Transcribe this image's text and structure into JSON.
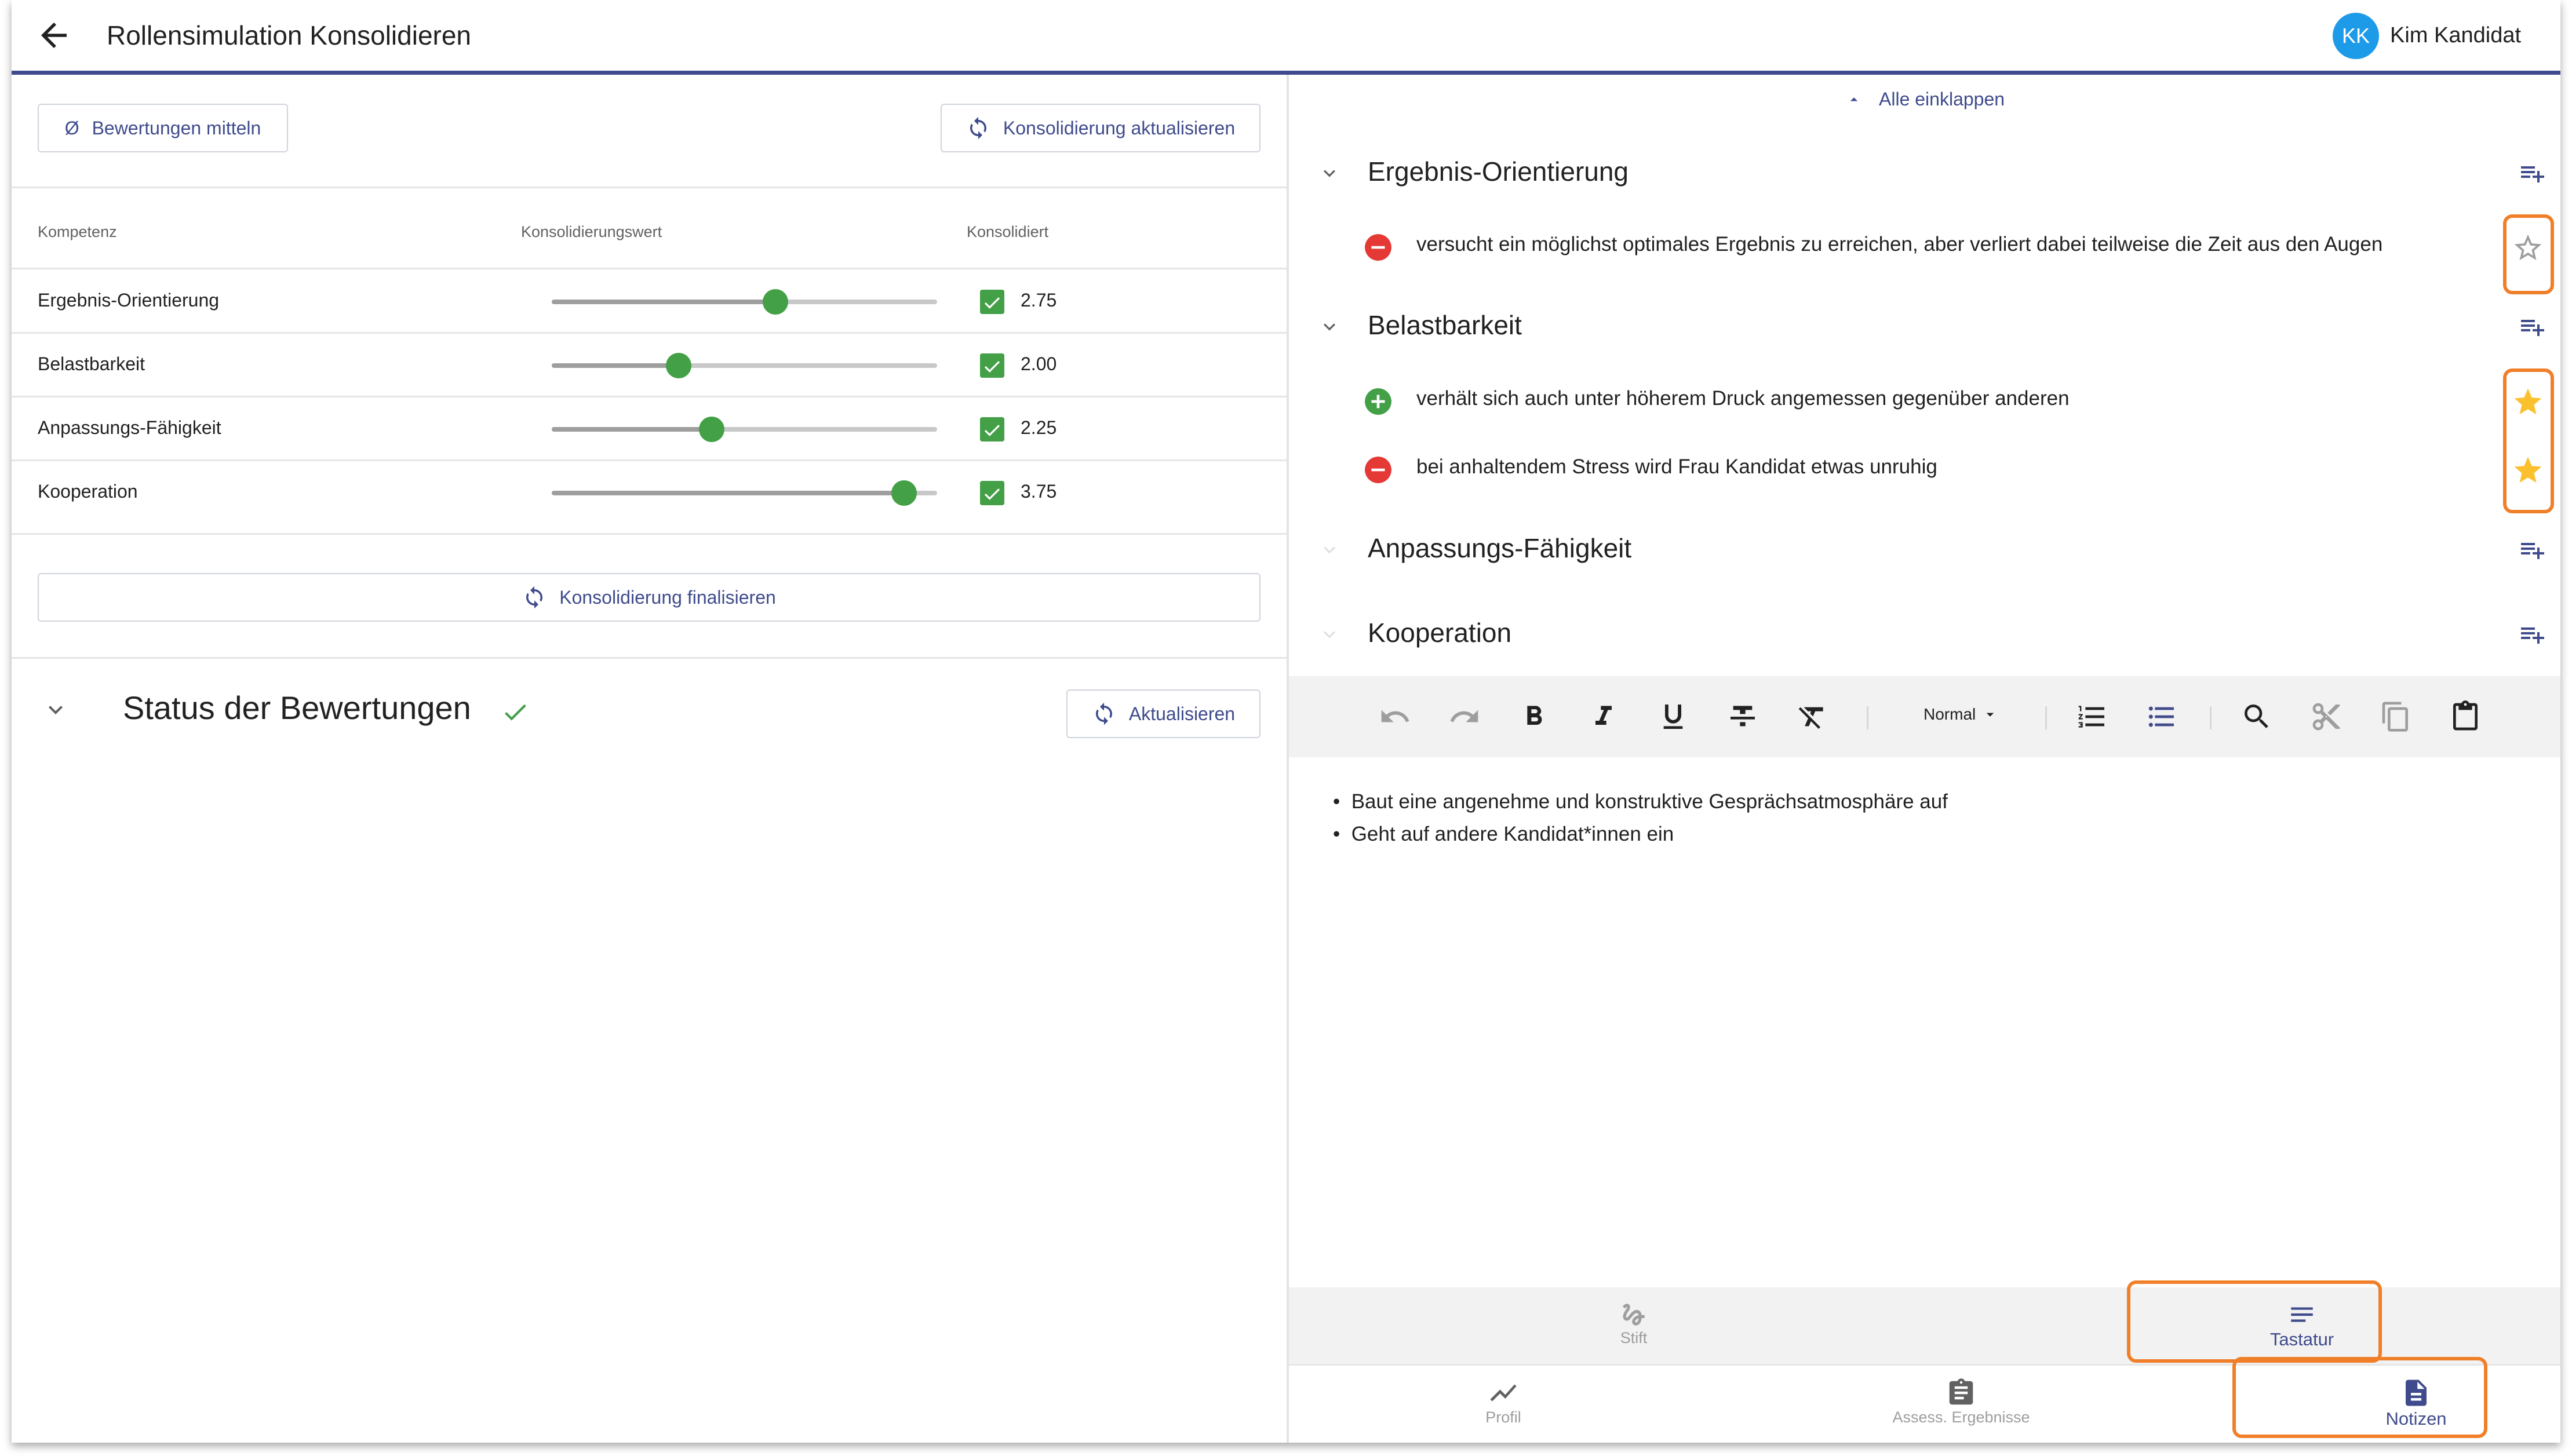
{
  "header": {
    "title": "Rollensimulation Konsolidieren",
    "user_initials": "KK",
    "user_name": "Kim Kandidat"
  },
  "consolidation": {
    "average_button": "Bewertungen mitteln",
    "average_symbol": "Ø",
    "update_button": "Konsolidierung aktualisieren",
    "finalize_button": "Konsolidierung finalisieren",
    "columns": [
      "Kompetenz",
      "Konsolidierungswert",
      "Konsolidiert"
    ],
    "rows": [
      {
        "label": "Ergebnis-Orientierung",
        "value": "2.75",
        "fraction": 0.58,
        "checked": true
      },
      {
        "label": "Belastbarkeit",
        "value": "2.00",
        "fraction": 0.33,
        "checked": true
      },
      {
        "label": "Anpassungs-Fähigkeit",
        "value": "2.25",
        "fraction": 0.415,
        "checked": true
      },
      {
        "label": "Kooperation",
        "value": "3.75",
        "fraction": 0.915,
        "checked": true
      }
    ]
  },
  "status": {
    "title": "Status der Bewertungen",
    "refresh_button": "Aktualisieren"
  },
  "notes": {
    "collapse_all": "Alle einklappen",
    "sections": [
      {
        "title": "Ergebnis-Orientierung",
        "items": [
          {
            "type": "negative",
            "text": "versucht ein möglichst optimales Ergebnis zu erreichen, aber verliert dabei teilweise die Zeit aus den Augen",
            "starred": false
          }
        ]
      },
      {
        "title": "Belastbarkeit",
        "items": [
          {
            "type": "positive",
            "text": "verhält sich auch unter höherem Druck angemessen gegenüber anderen",
            "starred": true
          },
          {
            "type": "negative",
            "text": "bei anhaltendem Stress wird Frau Kandidat etwas unruhig",
            "starred": true
          }
        ]
      },
      {
        "title": "Anpassungs-Fähigkeit",
        "items": []
      },
      {
        "title": "Kooperation",
        "items": []
      }
    ]
  },
  "editor": {
    "format_select": "Normal",
    "content": [
      "Baut eine angenehme und konstruktive Gesprächsatmosphäre auf",
      "Geht auf andere Kandidat*innen ein"
    ]
  },
  "input_tabs": {
    "pen": "Stift",
    "keyboard": "Tastatur"
  },
  "bottom_nav": {
    "profile": "Profil",
    "results": "Assess. Ergebnisse",
    "notes": "Notizen"
  },
  "colors": {
    "accent": "#3f4b8c",
    "green": "#43a047",
    "red": "#e53935",
    "star": "#fbc02d",
    "highlight": "#f07f2a"
  }
}
